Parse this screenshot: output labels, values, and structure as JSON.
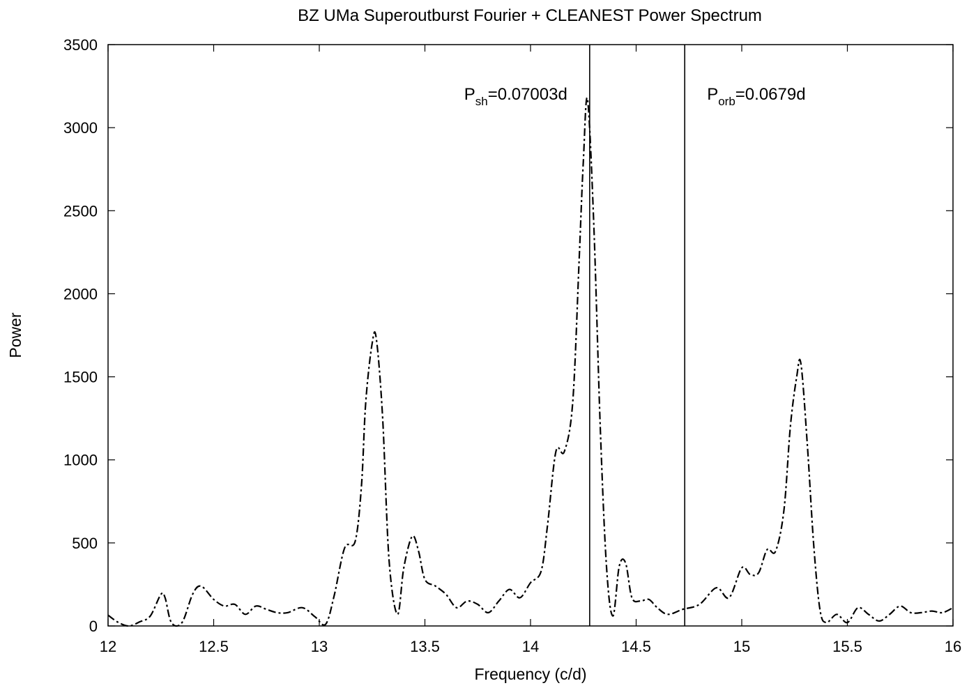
{
  "chart_data": {
    "type": "line",
    "title": "BZ UMa Superoutburst Fourier + CLEANEST Power Spectrum",
    "xlabel": "Frequency (c/d)",
    "ylabel": "Power",
    "xlim": [
      12,
      16
    ],
    "ylim": [
      0,
      3500
    ],
    "xticks": [
      12,
      12.5,
      13,
      13.5,
      14,
      14.5,
      15,
      15.5,
      16
    ],
    "xtick_labels": [
      "12",
      "12.5",
      "13",
      "13.5",
      "14",
      "14.5",
      "15",
      "15.5",
      "16"
    ],
    "yticks": [
      0,
      500,
      1000,
      1500,
      2000,
      2500,
      3000,
      3500
    ],
    "ytick_labels": [
      "0",
      "500",
      "1000",
      "1500",
      "2000",
      "2500",
      "3000",
      "3500"
    ],
    "grid": false,
    "series": [
      {
        "line_style": "dash-dot",
        "color": "#000000",
        "x": [
          12.0,
          12.05,
          12.1,
          12.15,
          12.2,
          12.25,
          12.27,
          12.3,
          12.35,
          12.4,
          12.44,
          12.5,
          12.55,
          12.6,
          12.65,
          12.7,
          12.75,
          12.8,
          12.85,
          12.92,
          12.98,
          13.03,
          13.07,
          13.12,
          13.17,
          13.2,
          13.22,
          13.25,
          13.27,
          13.3,
          13.33,
          13.37,
          13.4,
          13.44,
          13.47,
          13.5,
          13.55,
          13.6,
          13.65,
          13.7,
          13.75,
          13.8,
          13.85,
          13.9,
          13.95,
          14.0,
          14.05,
          14.08,
          14.12,
          14.16,
          14.2,
          14.23,
          14.25,
          14.27,
          14.3,
          14.33,
          14.36,
          14.39,
          14.42,
          14.45,
          14.48,
          14.52,
          14.56,
          14.6,
          14.65,
          14.72,
          14.8,
          14.88,
          14.94,
          15.0,
          15.04,
          15.08,
          15.12,
          15.16,
          15.2,
          15.23,
          15.26,
          15.28,
          15.31,
          15.34,
          15.37,
          15.4,
          15.45,
          15.5,
          15.55,
          15.6,
          15.65,
          15.7,
          15.75,
          15.8,
          15.85,
          15.9,
          15.95,
          16.0
        ],
        "y": [
          65,
          20,
          0,
          25,
          60,
          190,
          170,
          20,
          20,
          190,
          240,
          160,
          120,
          130,
          70,
          120,
          100,
          80,
          80,
          110,
          55,
          10,
          180,
          470,
          510,
          850,
          1350,
          1700,
          1730,
          1250,
          400,
          70,
          350,
          540,
          450,
          280,
          240,
          190,
          110,
          150,
          130,
          80,
          150,
          220,
          170,
          260,
          330,
          600,
          1050,
          1050,
          1350,
          2200,
          2800,
          3170,
          2400,
          1200,
          350,
          60,
          360,
          380,
          170,
          150,
          160,
          110,
          70,
          100,
          130,
          230,
          170,
          350,
          310,
          320,
          460,
          450,
          700,
          1200,
          1500,
          1580,
          1100,
          500,
          100,
          20,
          70,
          20,
          110,
          70,
          30,
          70,
          120,
          80,
          80,
          90,
          80,
          110
        ]
      }
    ],
    "vertical_lines": [
      {
        "x": 14.28,
        "label_main": "P",
        "label_sub": "sh",
        "label_value": "=0.07003d"
      },
      {
        "x": 14.73,
        "label_main": "P",
        "label_sub": "orb",
        "label_value": "=0.0679d"
      }
    ]
  }
}
